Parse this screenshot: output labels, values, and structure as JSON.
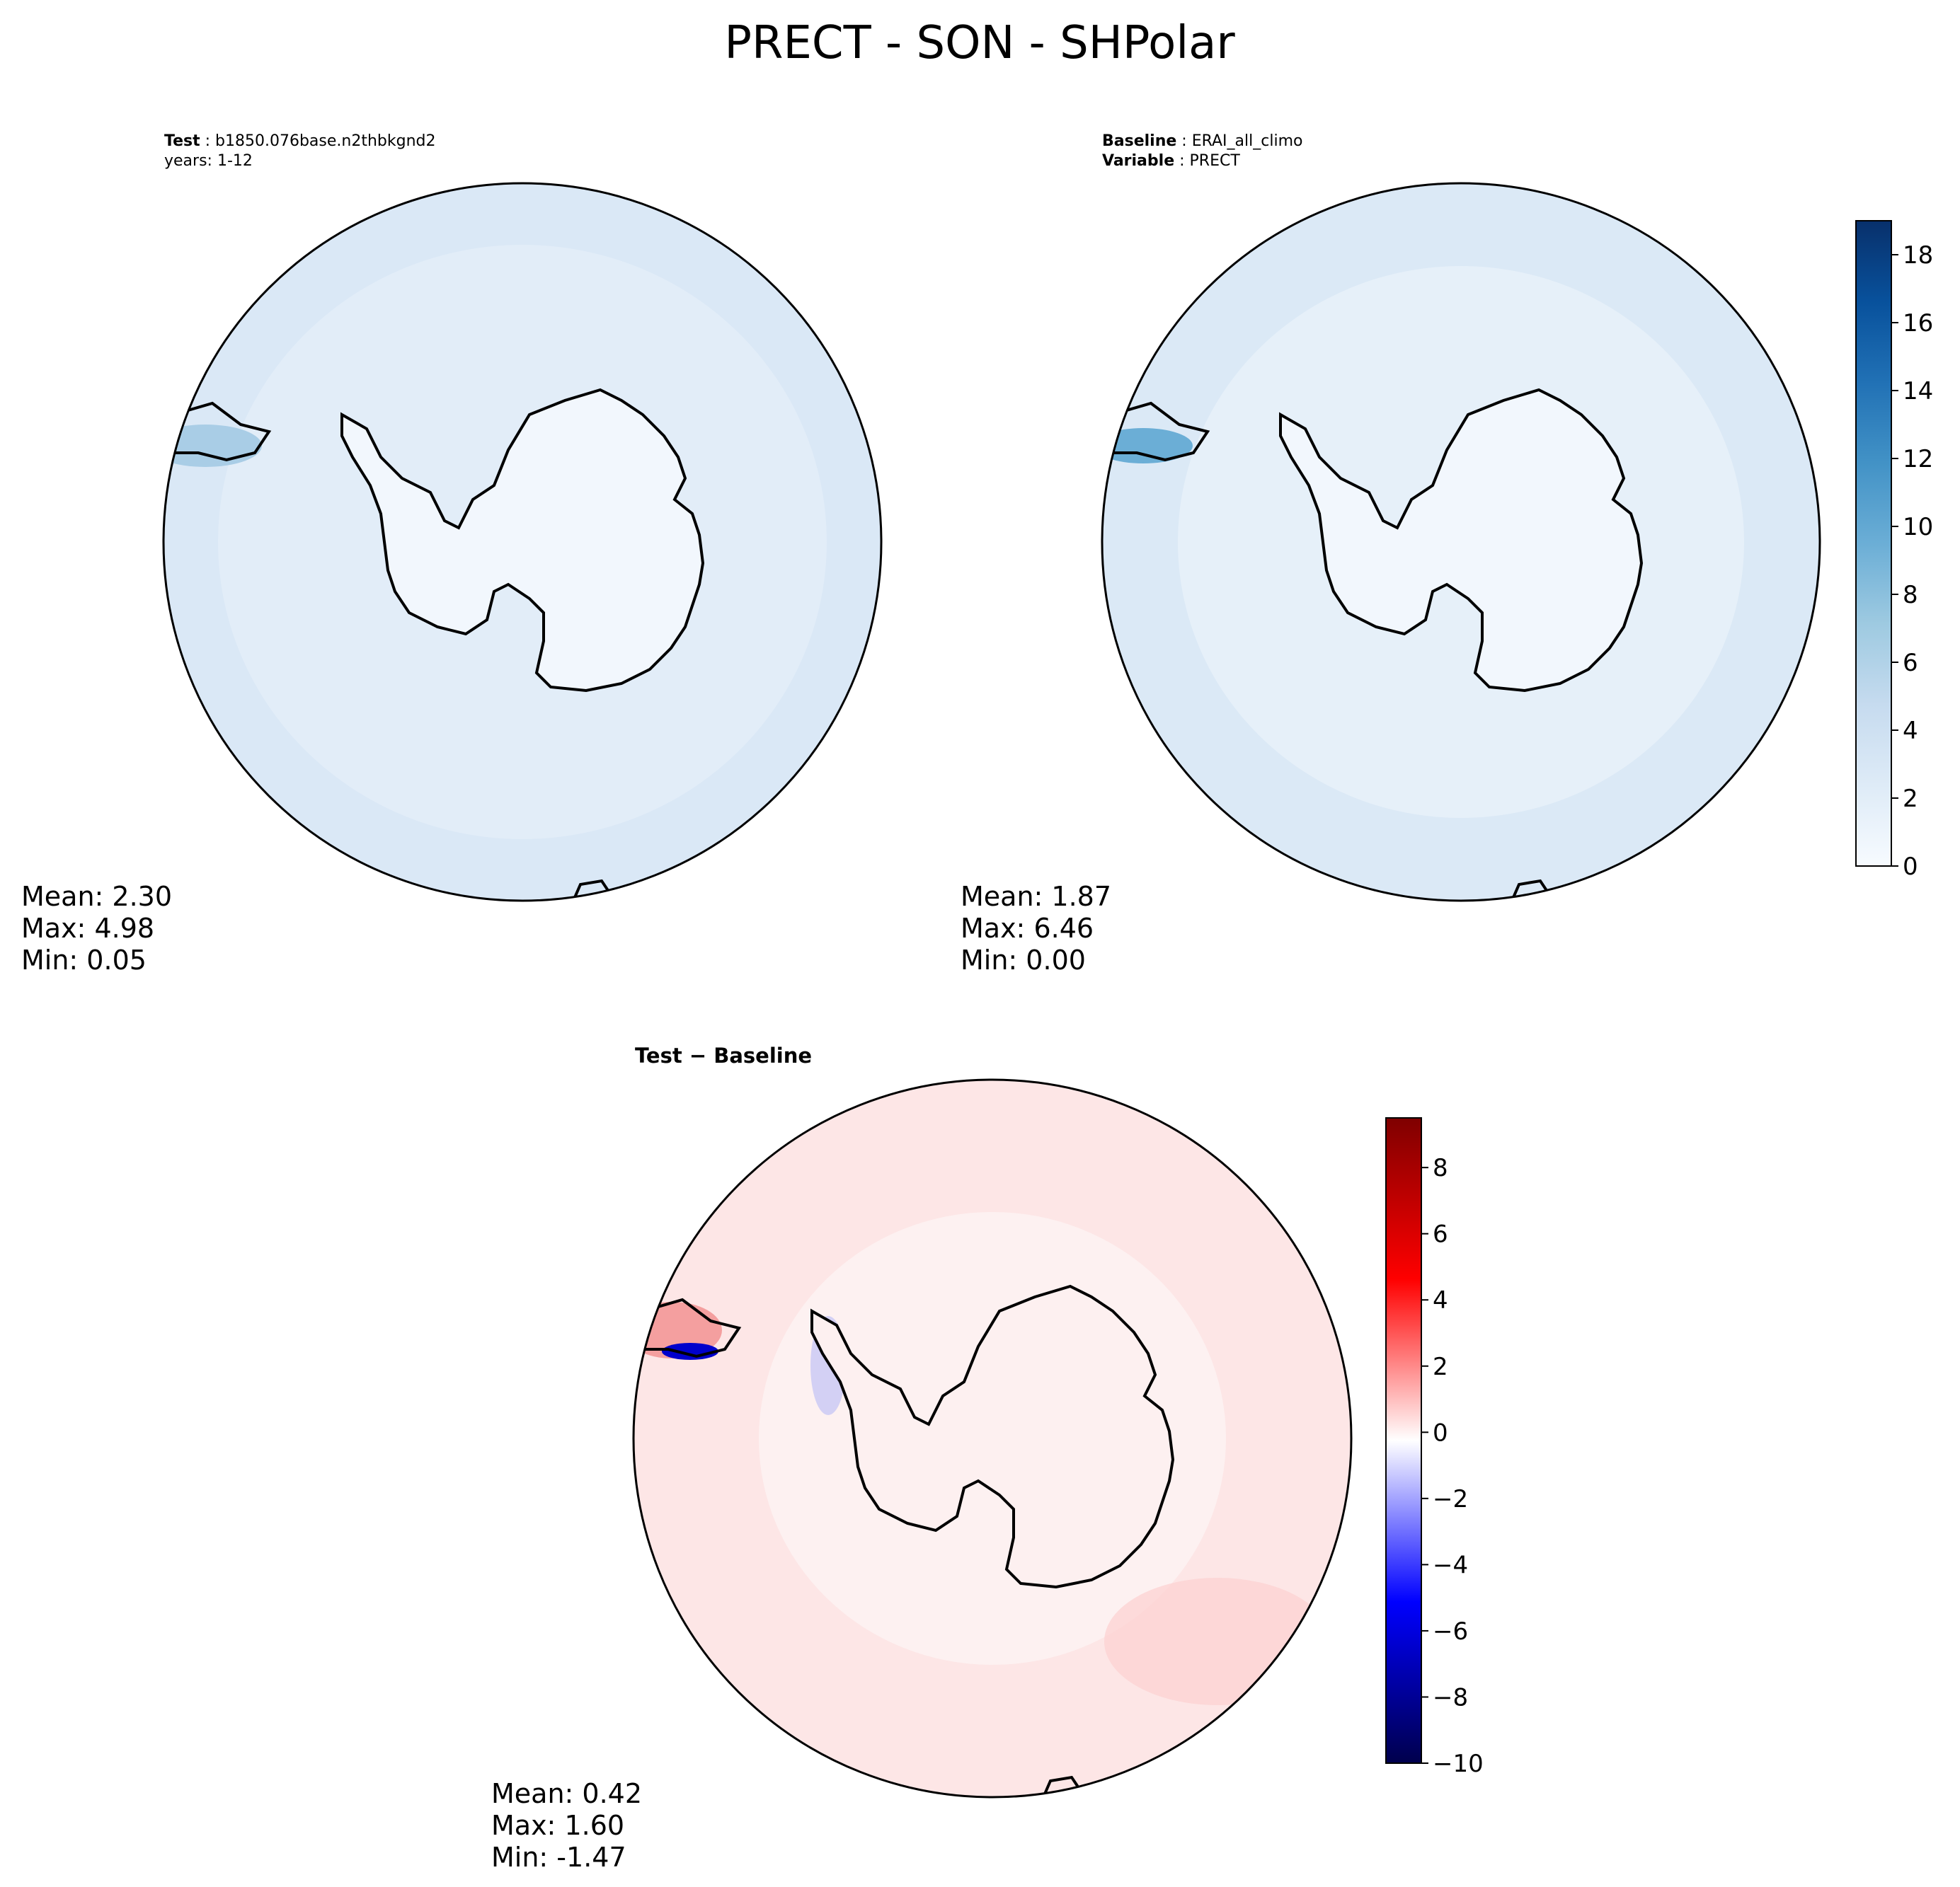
{
  "figure": {
    "title": "PRECT - SON - SHPolar"
  },
  "panels": [
    {
      "id": "test",
      "header": [
        {
          "label": "Test",
          "value": "b1850.076base.n2thbkgnd2"
        },
        {
          "label": "",
          "value": "years: 1-12"
        }
      ],
      "stats": {
        "mean": "Mean:  2.30",
        "max": "Max:  4.98",
        "min": "Min:  0.05"
      }
    },
    {
      "id": "baseline",
      "header": [
        {
          "label": "Baseline",
          "value": "ERAI_all_climo"
        },
        {
          "label": "Variable",
          "value": "PRECT"
        }
      ],
      "stats": {
        "mean": "Mean:  1.87",
        "max": "Max:  6.46",
        "min": "Min:  0.00"
      }
    },
    {
      "id": "diff",
      "title": "Test − Baseline",
      "stats": {
        "mean": "Mean:  0.42",
        "max": "Max:  1.60",
        "min": "Min: -1.47"
      }
    }
  ],
  "colorbars": {
    "blues": {
      "range": [
        0,
        19
      ],
      "ticks": [
        "0",
        "2",
        "4",
        "6",
        "8",
        "10",
        "12",
        "14",
        "16",
        "18"
      ],
      "colors": [
        "#f7fbff",
        "#deebf7",
        "#c6dbef",
        "#9ecae1",
        "#6baed6",
        "#4292c6",
        "#2171b5",
        "#08519c",
        "#08306b"
      ]
    },
    "diverging": {
      "range": [
        -10,
        9.5
      ],
      "ticks": [
        "−10",
        "−8",
        "−6",
        "−4",
        "−2",
        "0",
        "2",
        "4",
        "6",
        "8"
      ],
      "colors": [
        "#00004c",
        "#0000ff",
        "#ffffff",
        "#ff0000",
        "#7f0000"
      ]
    }
  },
  "map_fill_colors": {
    "test_ocean": "#dae8f6",
    "test_land": "#f2f7fd",
    "baseline_ocean": "#dbe9f6",
    "baseline_land": "#f2f7fd",
    "diff_ocean": "#fde6e6",
    "diff_land": "#fdf0f0"
  }
}
